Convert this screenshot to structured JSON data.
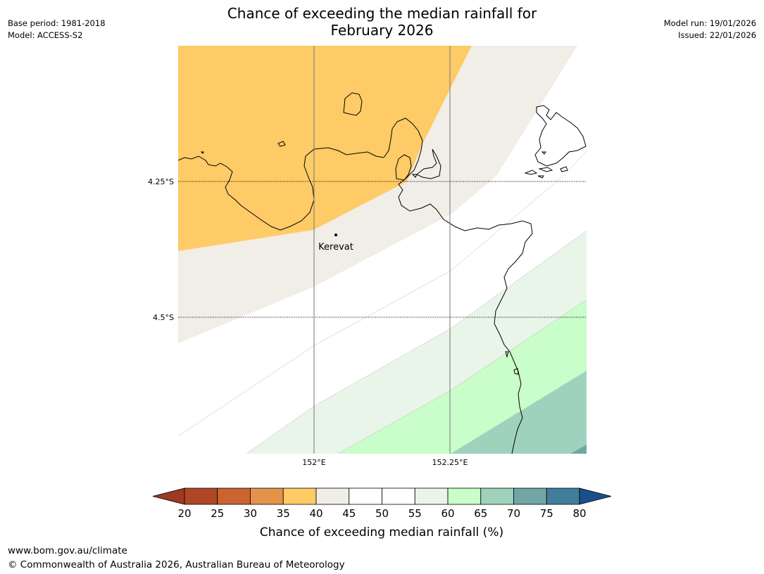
{
  "header": {
    "title_line1": "Chance of exceeding the median rainfall for",
    "title_line2": "February 2026",
    "base_period": "Base period: 1981-2018",
    "model": "Model: ACCESS-S2",
    "model_run": "Model run: 19/01/2026",
    "issued": "Issued: 22/01/2026"
  },
  "map": {
    "lat_labels": [
      "4.25°S",
      "4.5°S"
    ],
    "lon_labels": [
      "152°E",
      "152.25°E"
    ],
    "places": [
      {
        "name": "Kerevat"
      }
    ]
  },
  "legend": {
    "label": "Chance of exceeding median rainfall (%)",
    "ticks": [
      "20",
      "25",
      "30",
      "35",
      "40",
      "45",
      "50",
      "55",
      "60",
      "65",
      "70",
      "75",
      "80"
    ],
    "under_color": "#9c3a22",
    "over_color": "#1a4f8a",
    "colors": [
      "#ae4824",
      "#cc6431",
      "#e3944a",
      "#fecb67",
      "#f1ede7",
      "#ffffff",
      "#ffffff",
      "#e9f5e9",
      "#c9fdc9",
      "#9ed2bd",
      "#72a6a6",
      "#427e9c"
    ]
  },
  "footer": {
    "url": "www.bom.gov.au/climate",
    "copyright": "© Commonwealth of Australia 2026, Australian Bureau of Meteorology"
  }
}
